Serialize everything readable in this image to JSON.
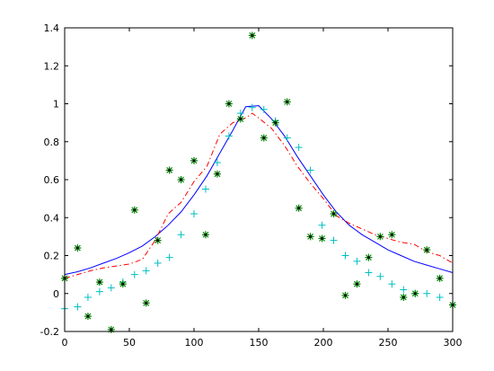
{
  "chart_data": {
    "type": "line",
    "title": "",
    "xlabel": "",
    "ylabel": "",
    "xlim": [
      0,
      300
    ],
    "ylim": [
      -0.2,
      1.4
    ],
    "grid": false,
    "x_ticks": [
      0,
      50,
      100,
      150,
      200,
      250,
      300
    ],
    "y_ticks": [
      -0.2,
      0,
      0.2,
      0.4,
      0.6,
      0.8,
      1,
      1.2,
      1.4
    ],
    "x_tick_labels": [
      "0",
      "50",
      "100",
      "150",
      "200",
      "250",
      "300"
    ],
    "y_tick_labels": [
      "-0.2",
      "0",
      "0.2",
      "0.4",
      "0.6",
      "0.8",
      "1",
      "1.2",
      "1.4"
    ],
    "series": [
      {
        "style": "line",
        "color": "#0000ff",
        "dash": "solid",
        "x": [
          0,
          10,
          20,
          30,
          40,
          50,
          60,
          70,
          80,
          90,
          100,
          110,
          120,
          130,
          140,
          150,
          160,
          170,
          180,
          190,
          200,
          210,
          220,
          230,
          240,
          250,
          260,
          270,
          280,
          290,
          300
        ],
        "y": [
          0.1,
          0.115,
          0.135,
          0.16,
          0.185,
          0.215,
          0.25,
          0.3,
          0.36,
          0.43,
          0.52,
          0.62,
          0.74,
          0.86,
          0.985,
          0.99,
          0.92,
          0.83,
          0.72,
          0.62,
          0.52,
          0.43,
          0.36,
          0.31,
          0.27,
          0.23,
          0.2,
          0.17,
          0.15,
          0.13,
          0.11
        ]
      },
      {
        "style": "line",
        "color": "#ff0000",
        "dash": "dashdot",
        "x": [
          0,
          10,
          20,
          30,
          40,
          50,
          60,
          70,
          80,
          90,
          100,
          110,
          120,
          130,
          140,
          145,
          150,
          160,
          170,
          180,
          190,
          200,
          210,
          220,
          230,
          240,
          250,
          260,
          270,
          280,
          290,
          300
        ],
        "y": [
          0.08,
          0.1,
          0.12,
          0.135,
          0.145,
          0.155,
          0.18,
          0.28,
          0.42,
          0.48,
          0.59,
          0.67,
          0.84,
          0.9,
          0.925,
          0.95,
          0.925,
          0.87,
          0.78,
          0.67,
          0.58,
          0.5,
          0.41,
          0.37,
          0.34,
          0.31,
          0.29,
          0.27,
          0.26,
          0.22,
          0.2,
          0.16
        ]
      },
      {
        "style": "markers",
        "marker": "plus",
        "color": "#00bfbf",
        "x": [
          0,
          10,
          18,
          27,
          36,
          45,
          54,
          63,
          72,
          81,
          90,
          100,
          109,
          118,
          127,
          136,
          145,
          154,
          163,
          172,
          181,
          190,
          199,
          208,
          217,
          226,
          235,
          244,
          253,
          262,
          271,
          280,
          290,
          300
        ],
        "y": [
          -0.08,
          -0.07,
          -0.02,
          0.01,
          0.03,
          0.06,
          0.1,
          0.12,
          0.16,
          0.19,
          0.31,
          0.42,
          0.55,
          0.69,
          0.83,
          0.95,
          0.98,
          0.97,
          0.91,
          0.82,
          0.77,
          0.65,
          0.36,
          0.28,
          0.2,
          0.17,
          0.11,
          0.09,
          0.05,
          0.02,
          0.0,
          0.0,
          -0.02,
          -0.06
        ]
      },
      {
        "style": "markers",
        "marker": "star",
        "color": "#008000",
        "x": [
          0,
          10,
          18,
          27,
          36,
          45,
          54,
          63,
          72,
          81,
          90,
          100,
          109,
          118,
          127,
          136,
          145,
          154,
          163,
          172,
          181,
          190,
          199,
          208,
          217,
          226,
          235,
          244,
          253,
          262,
          271,
          280,
          290,
          300
        ],
        "y": [
          0.08,
          0.24,
          -0.12,
          0.06,
          -0.19,
          0.05,
          0.44,
          -0.05,
          0.28,
          0.65,
          0.6,
          0.7,
          0.31,
          0.63,
          1.0,
          0.92,
          1.36,
          0.82,
          0.9,
          1.01,
          0.45,
          0.3,
          0.29,
          0.42,
          -0.01,
          0.05,
          0.19,
          0.3,
          0.31,
          -0.02,
          0.0,
          0.23,
          0.08,
          -0.06
        ]
      }
    ]
  }
}
